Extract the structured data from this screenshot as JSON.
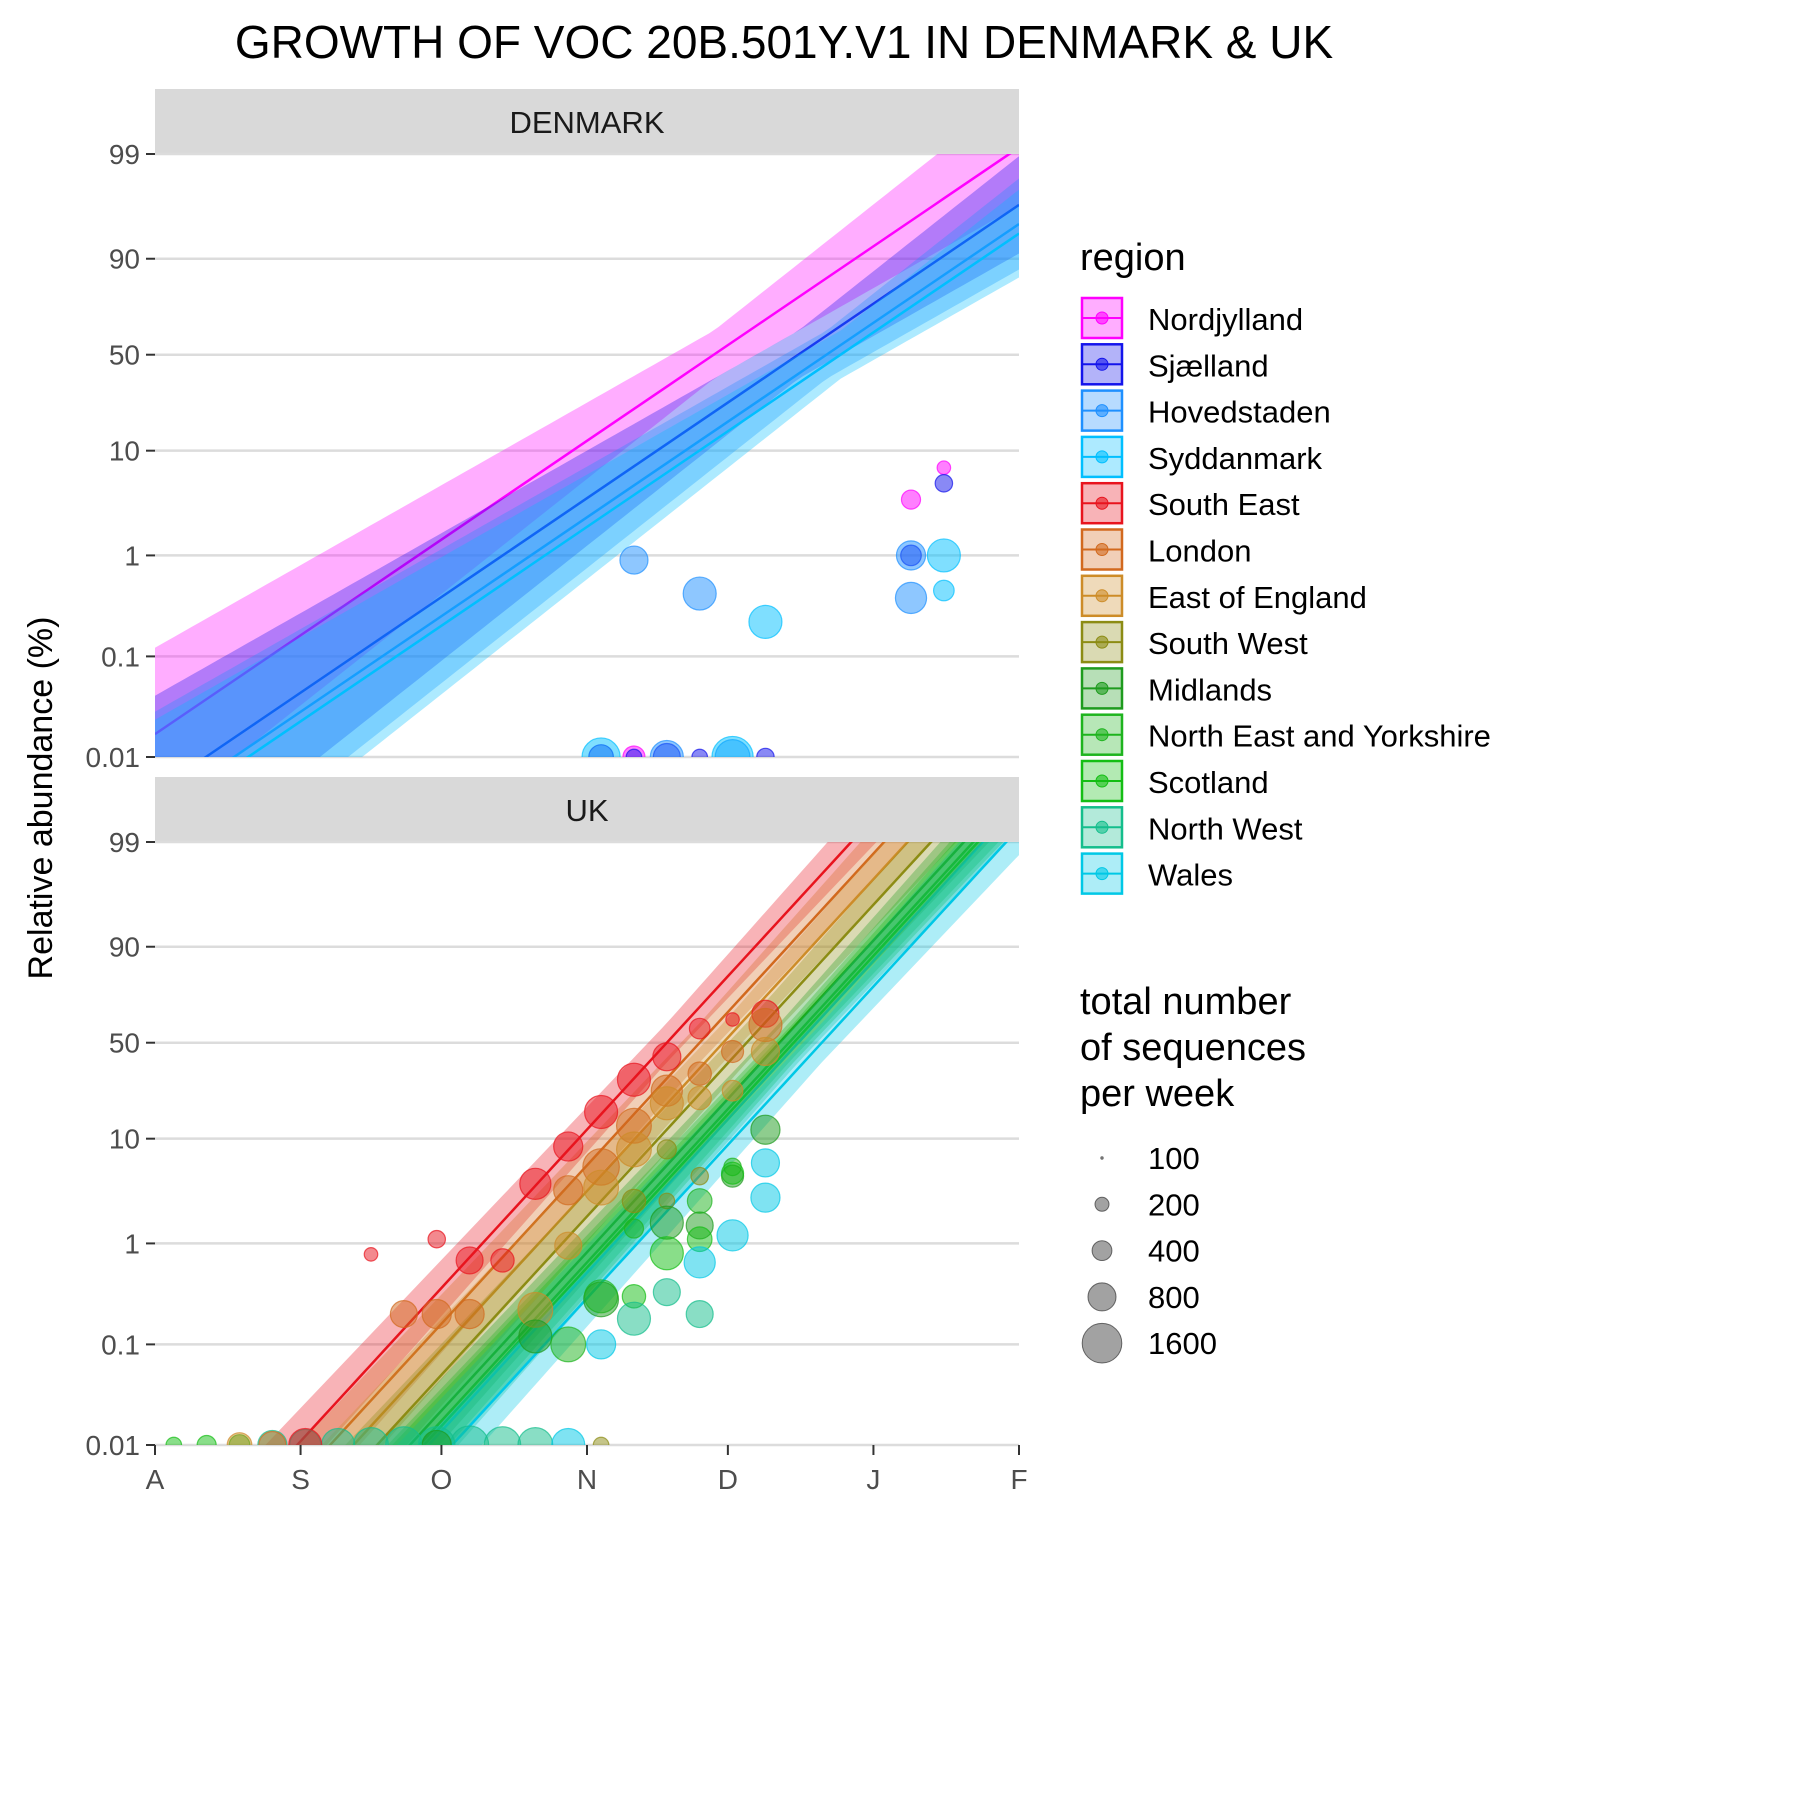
{
  "chart_data": {
    "type": "scatter",
    "title": "GROWTH OF VOC 20B.501Y.V1 IN DENMARK & UK",
    "xlabel": "",
    "ylabel": "Relative abundance (%)",
    "x_ticks": [
      "A",
      "S",
      "O",
      "N",
      "D",
      "J",
      "F"
    ],
    "y_ticks": [
      "0.01",
      "0.1",
      "1",
      "10",
      "50",
      "90",
      "99"
    ],
    "y_scale": "logit",
    "x_unit": "days since 1 Aug 2020",
    "ylim": [
      0.01,
      99
    ],
    "panels": [
      {
        "name": "DENMARK",
        "fits": [
          {
            "region": "Nordjylland",
            "slope": 0.073,
            "intercept_day": 119
          },
          {
            "region": "Sjælland",
            "slope": 0.073,
            "intercept_day": 137
          },
          {
            "region": "Hovedstaden",
            "slope": 0.073,
            "intercept_day": 143
          },
          {
            "region": "Syddanmark",
            "slope": 0.073,
            "intercept_day": 146
          }
        ],
        "points": [
          {
            "region": "Nordjylland",
            "x": 161,
            "y": 3.5,
            "n": 300
          },
          {
            "region": "Nordjylland",
            "x": 168,
            "y": 7,
            "n": 150
          },
          {
            "region": "Nordjylland",
            "x": 102,
            "y": 0.01,
            "n": 400
          },
          {
            "region": "Sjælland",
            "x": 168,
            "y": 5,
            "n": 250
          },
          {
            "region": "Sjælland",
            "x": 161,
            "y": 1,
            "n": 350
          },
          {
            "region": "Sjælland",
            "x": 95,
            "y": 0.01,
            "n": 500
          },
          {
            "region": "Sjælland",
            "x": 102,
            "y": 0.01,
            "n": 200
          },
          {
            "region": "Sjælland",
            "x": 109,
            "y": 0.01,
            "n": 600
          },
          {
            "region": "Sjælland",
            "x": 116,
            "y": 0.01,
            "n": 200
          },
          {
            "region": "Sjælland",
            "x": 130,
            "y": 0.01,
            "n": 250
          },
          {
            "region": "Hovedstaden",
            "x": 102,
            "y": 0.9,
            "n": 650
          },
          {
            "region": "Hovedstaden",
            "x": 116,
            "y": 0.42,
            "n": 900
          },
          {
            "region": "Hovedstaden",
            "x": 161,
            "y": 1,
            "n": 700
          },
          {
            "region": "Hovedstaden",
            "x": 161,
            "y": 0.38,
            "n": 800
          },
          {
            "region": "Hovedstaden",
            "x": 109,
            "y": 0.01,
            "n": 900
          },
          {
            "region": "Hovedstaden",
            "x": 123,
            "y": 0.01,
            "n": 1000
          },
          {
            "region": "Syddanmark",
            "x": 168,
            "y": 1,
            "n": 900
          },
          {
            "region": "Syddanmark",
            "x": 168,
            "y": 0.45,
            "n": 350
          },
          {
            "region": "Syddanmark",
            "x": 130,
            "y": 0.22,
            "n": 900
          },
          {
            "region": "Syddanmark",
            "x": 95,
            "y": 0.01,
            "n": 1200
          },
          {
            "region": "Syddanmark",
            "x": 123,
            "y": 0.01,
            "n": 1400
          }
        ]
      },
      {
        "name": "UK",
        "fits": [
          {
            "region": "South East",
            "slope": 0.117,
            "intercept_day": 109
          },
          {
            "region": "London",
            "slope": 0.117,
            "intercept_day": 116
          },
          {
            "region": "East of England",
            "slope": 0.117,
            "intercept_day": 121
          },
          {
            "region": "South West",
            "slope": 0.117,
            "intercept_day": 126
          },
          {
            "region": "Midlands",
            "slope": 0.117,
            "intercept_day": 133
          },
          {
            "region": "North East and Yorkshire",
            "slope": 0.117,
            "intercept_day": 135
          },
          {
            "region": "Scotland",
            "slope": 0.117,
            "intercept_day": 136
          },
          {
            "region": "North West",
            "slope": 0.117,
            "intercept_day": 137
          },
          {
            "region": "Wales",
            "slope": 0.117,
            "intercept_day": 142
          }
        ],
        "points": [
          {
            "region": "South East",
            "x": 46,
            "y": 0.78,
            "n": 150
          },
          {
            "region": "South East",
            "x": 60,
            "y": 1.1,
            "n": 250
          },
          {
            "region": "South East",
            "x": 67,
            "y": 0.68,
            "n": 600
          },
          {
            "region": "South East",
            "x": 74,
            "y": 0.68,
            "n": 450
          },
          {
            "region": "South East",
            "x": 81,
            "y": 3.8,
            "n": 800
          },
          {
            "region": "South East",
            "x": 88,
            "y": 8.5,
            "n": 700
          },
          {
            "region": "South East",
            "x": 95,
            "y": 17,
            "n": 900
          },
          {
            "region": "South East",
            "x": 102,
            "y": 30,
            "n": 900
          },
          {
            "region": "South East",
            "x": 109,
            "y": 42,
            "n": 650
          },
          {
            "region": "South East",
            "x": 116,
            "y": 58,
            "n": 350
          },
          {
            "region": "South East",
            "x": 123,
            "y": 63,
            "n": 150
          },
          {
            "region": "South East",
            "x": 130,
            "y": 66,
            "n": 600
          },
          {
            "region": "London",
            "x": 53,
            "y": 0.2,
            "n": 600
          },
          {
            "region": "London",
            "x": 60,
            "y": 0.2,
            "n": 700
          },
          {
            "region": "London",
            "x": 67,
            "y": 0.2,
            "n": 700
          },
          {
            "region": "London",
            "x": 88,
            "y": 3.3,
            "n": 700
          },
          {
            "region": "London",
            "x": 95,
            "y": 5.5,
            "n": 1100
          },
          {
            "region": "London",
            "x": 102,
            "y": 13,
            "n": 1000
          },
          {
            "region": "London",
            "x": 109,
            "y": 25,
            "n": 800
          },
          {
            "region": "London",
            "x": 116,
            "y": 33,
            "n": 450
          },
          {
            "region": "London",
            "x": 123,
            "y": 45,
            "n": 400
          },
          {
            "region": "London",
            "x": 130,
            "y": 60,
            "n": 900
          },
          {
            "region": "East of England",
            "x": 81,
            "y": 0.22,
            "n": 1000
          },
          {
            "region": "East of England",
            "x": 88,
            "y": 0.95,
            "n": 600
          },
          {
            "region": "East of England",
            "x": 95,
            "y": 3.5,
            "n": 1000
          },
          {
            "region": "East of England",
            "x": 102,
            "y": 8,
            "n": 1000
          },
          {
            "region": "East of England",
            "x": 109,
            "y": 20,
            "n": 900
          },
          {
            "region": "East of England",
            "x": 116,
            "y": 22,
            "n": 450
          },
          {
            "region": "East of England",
            "x": 123,
            "y": 25,
            "n": 350
          },
          {
            "region": "East of England",
            "x": 130,
            "y": 45,
            "n": 650
          },
          {
            "region": "South West",
            "x": 102,
            "y": 2.6,
            "n": 450
          },
          {
            "region": "South West",
            "x": 109,
            "y": 2.6,
            "n": 200
          },
          {
            "region": "South West",
            "x": 109,
            "y": 8,
            "n": 300
          },
          {
            "region": "South West",
            "x": 116,
            "y": 4.5,
            "n": 250
          },
          {
            "region": "South West",
            "x": 95,
            "y": 0.01,
            "n": 200
          },
          {
            "region": "Midlands",
            "x": 81,
            "y": 0.12,
            "n": 900
          },
          {
            "region": "Midlands",
            "x": 95,
            "y": 0.28,
            "n": 1000
          },
          {
            "region": "Midlands",
            "x": 109,
            "y": 1.6,
            "n": 900
          },
          {
            "region": "Midlands",
            "x": 116,
            "y": 1.5,
            "n": 600
          },
          {
            "region": "Midlands",
            "x": 123,
            "y": 4.5,
            "n": 400
          },
          {
            "region": "Midlands",
            "x": 130,
            "y": 12,
            "n": 700
          },
          {
            "region": "North East and Yorkshire",
            "x": 88,
            "y": 0.1,
            "n": 1000
          },
          {
            "region": "North East and Yorkshire",
            "x": 95,
            "y": 0.3,
            "n": 900
          },
          {
            "region": "North East and Yorkshire",
            "x": 102,
            "y": 1.4,
            "n": 300
          },
          {
            "region": "North East and Yorkshire",
            "x": 116,
            "y": 2.6,
            "n": 500
          },
          {
            "region": "North East and Yorkshire",
            "x": 123,
            "y": 5.5,
            "n": 250
          },
          {
            "region": "Scotland",
            "x": 102,
            "y": 0.3,
            "n": 450
          },
          {
            "region": "Scotland",
            "x": 109,
            "y": 0.8,
            "n": 900
          },
          {
            "region": "Scotland",
            "x": 116,
            "y": 1.1,
            "n": 500
          },
          {
            "region": "Scotland",
            "x": 123,
            "y": 4.8,
            "n": 400
          },
          {
            "region": "Scotland",
            "x": 4,
            "y": 0.01,
            "n": 200
          },
          {
            "region": "Scotland",
            "x": 11,
            "y": 0.01,
            "n": 300
          },
          {
            "region": "Scotland",
            "x": 18,
            "y": 0.01,
            "n": 350
          },
          {
            "region": "North West",
            "x": 102,
            "y": 0.18,
            "n": 900
          },
          {
            "region": "North West",
            "x": 109,
            "y": 0.33,
            "n": 600
          },
          {
            "region": "North West",
            "x": 116,
            "y": 0.2,
            "n": 600
          },
          {
            "region": "North West",
            "x": 25,
            "y": 0.01,
            "n": 700
          },
          {
            "region": "North West",
            "x": 32,
            "y": 0.01,
            "n": 800
          },
          {
            "region": "North West",
            "x": 39,
            "y": 0.01,
            "n": 900
          },
          {
            "region": "North West",
            "x": 46,
            "y": 0.01,
            "n": 1000
          },
          {
            "region": "North West",
            "x": 53,
            "y": 0.01,
            "n": 1100
          },
          {
            "region": "North West",
            "x": 60,
            "y": 0.01,
            "n": 1100
          },
          {
            "region": "North West",
            "x": 67,
            "y": 0.01,
            "n": 1200
          },
          {
            "region": "North West",
            "x": 74,
            "y": 0.01,
            "n": 1100
          },
          {
            "region": "North West",
            "x": 81,
            "y": 0.01,
            "n": 1000
          },
          {
            "region": "Wales",
            "x": 95,
            "y": 0.1,
            "n": 700
          },
          {
            "region": "Wales",
            "x": 116,
            "y": 0.65,
            "n": 800
          },
          {
            "region": "Wales",
            "x": 123,
            "y": 1.2,
            "n": 800
          },
          {
            "region": "Wales",
            "x": 130,
            "y": 2.8,
            "n": 700
          },
          {
            "region": "Wales",
            "x": 130,
            "y": 6,
            "n": 650
          },
          {
            "region": "Wales",
            "x": 88,
            "y": 0.01,
            "n": 900
          },
          {
            "region": "South East",
            "x": 32,
            "y": 0.01,
            "n": 900
          },
          {
            "region": "London",
            "x": 25,
            "y": 0.01,
            "n": 600
          },
          {
            "region": "East of England",
            "x": 18,
            "y": 0.01,
            "n": 500
          },
          {
            "region": "Midlands",
            "x": 60,
            "y": 0.01,
            "n": 700
          }
        ]
      }
    ],
    "legend": {
      "region_title": "region",
      "regions": [
        {
          "name": "Nordjylland",
          "color": "#FF00FF"
        },
        {
          "name": "Sjælland",
          "color": "#1414EB"
        },
        {
          "name": "Hovedstaden",
          "color": "#1E90FF"
        },
        {
          "name": "Syddanmark",
          "color": "#00BFFF"
        },
        {
          "name": "South East",
          "color": "#E8141E"
        },
        {
          "name": "London",
          "color": "#D2691E"
        },
        {
          "name": "East of England",
          "color": "#CD8C28"
        },
        {
          "name": "South West",
          "color": "#8C8C14"
        },
        {
          "name": "Midlands",
          "color": "#1E9B1E"
        },
        {
          "name": "North East and Yorkshire",
          "color": "#1EB41E"
        },
        {
          "name": "Scotland",
          "color": "#14BE14"
        },
        {
          "name": "North West",
          "color": "#14BE8C"
        },
        {
          "name": "Wales",
          "color": "#00C8E6"
        }
      ],
      "size_title": [
        "total number",
        "of sequences",
        "per week"
      ],
      "size_entries": [
        {
          "label": "100",
          "n": 100
        },
        {
          "label": "200",
          "n": 200
        },
        {
          "label": "400",
          "n": 400
        },
        {
          "label": "800",
          "n": 800
        },
        {
          "label": "1600",
          "n": 1600
        }
      ]
    }
  }
}
